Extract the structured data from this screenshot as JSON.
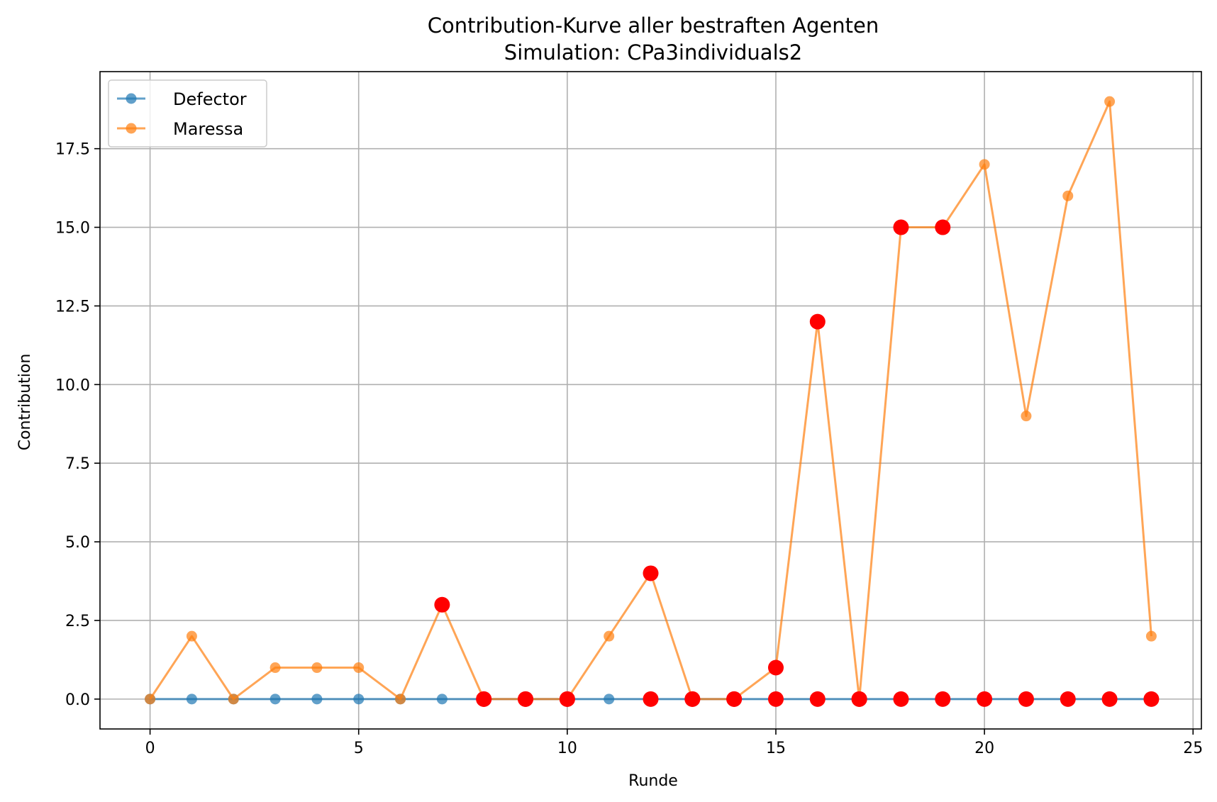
{
  "chart_data": {
    "type": "line",
    "title": "Contribution-Kurve aller bestraften Agenten",
    "subtitle": "Simulation: CPa3individuals2",
    "xlabel": "Runde",
    "ylabel": "Contribution",
    "xlim": [
      -1.2,
      25.2
    ],
    "ylim": [
      -0.95,
      19.95
    ],
    "xticks": [
      0,
      5,
      10,
      15,
      20,
      25
    ],
    "xtick_labels": [
      "0",
      "5",
      "10",
      "15",
      "20",
      "25"
    ],
    "yticks": [
      0.0,
      2.5,
      5.0,
      7.5,
      10.0,
      12.5,
      15.0,
      17.5
    ],
    "ytick_labels": [
      "0.0",
      "2.5",
      "5.0",
      "7.5",
      "10.0",
      "12.5",
      "15.0",
      "17.5"
    ],
    "grid": true,
    "legend_position": "top-left",
    "series": [
      {
        "name": "Defector",
        "color": "#1f77b4",
        "x": [
          0,
          1,
          2,
          3,
          4,
          5,
          6,
          7,
          8,
          9,
          10,
          11,
          12,
          13,
          14,
          15,
          16,
          17,
          18,
          19,
          20,
          21,
          22,
          23,
          24
        ],
        "y": [
          0,
          0,
          0,
          0,
          0,
          0,
          0,
          0,
          0,
          0,
          0,
          0,
          0,
          0,
          0,
          0,
          0,
          0,
          0,
          0,
          0,
          0,
          0,
          0,
          0
        ],
        "punished": [
          8,
          9,
          10,
          12,
          13,
          14,
          15,
          16,
          17,
          18,
          19,
          20,
          21,
          22,
          23,
          24
        ]
      },
      {
        "name": "Maressa",
        "color": "#ff7f0e",
        "x": [
          0,
          1,
          2,
          3,
          4,
          5,
          6,
          7,
          8,
          9,
          10,
          11,
          12,
          13,
          14,
          15,
          16,
          17,
          18,
          19,
          20,
          21,
          22,
          23,
          24
        ],
        "y": [
          0,
          2,
          0,
          1,
          1,
          1,
          0,
          3,
          0,
          0,
          0,
          2,
          4,
          0,
          0,
          1,
          12,
          0,
          15,
          15,
          17,
          9,
          16,
          19,
          2
        ],
        "punished": [
          7,
          8,
          9,
          10,
          12,
          13,
          14,
          15,
          16,
          17,
          18,
          19
        ]
      }
    ],
    "punish_color": "#ff0000"
  }
}
